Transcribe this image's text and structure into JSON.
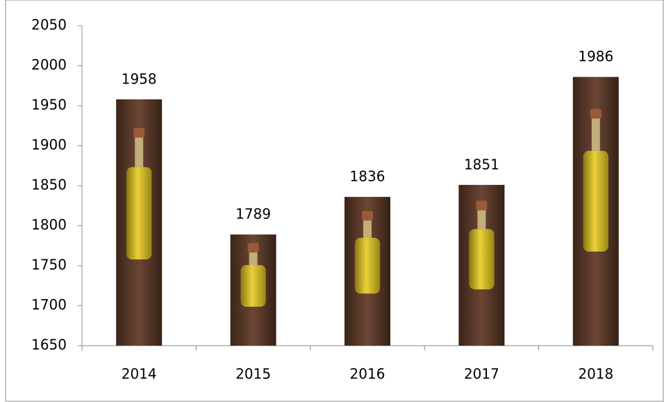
{
  "chart_data": {
    "type": "bar",
    "categories": [
      "2014",
      "2015",
      "2016",
      "2017",
      "2018"
    ],
    "values": [
      1958,
      1789,
      1836,
      1851,
      1986
    ],
    "color": "#4a2e1f",
    "ylim": [
      1650,
      2050
    ],
    "yticks": [
      1650,
      1700,
      1750,
      1800,
      1850,
      1900,
      1950,
      2000,
      2050
    ],
    "grid": false
  }
}
